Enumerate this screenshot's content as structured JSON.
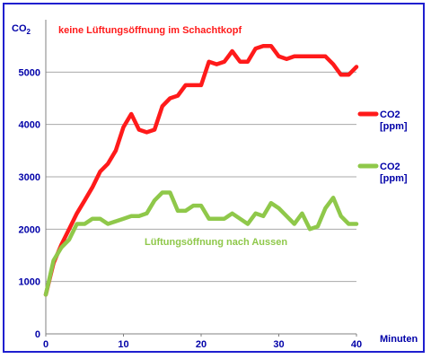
{
  "chart_data": {
    "type": "line",
    "ylabel": "CO",
    "ylabel_sub": "2",
    "xlabel": "Minuten",
    "xlim": [
      0,
      40
    ],
    "ylim": [
      0,
      6000
    ],
    "xticks": [
      0,
      10,
      20,
      30,
      40
    ],
    "yticks": [
      0,
      1000,
      2000,
      3000,
      4000,
      5000
    ],
    "grid": "horizontal",
    "legend_position": "right",
    "annotations": [
      {
        "text": "keine Lüftungsöffnung im Schachtkopf",
        "color": "#ff1a1a"
      },
      {
        "text": "Lüftungsöffnung nach Aussen",
        "color": "#8fc84a"
      }
    ],
    "series": [
      {
        "legend_line1": "CO2",
        "legend_line2": "[ppm]",
        "color": "#ff1a1a",
        "x": [
          0,
          1,
          2,
          3,
          4,
          5,
          6,
          7,
          8,
          9,
          10,
          11,
          12,
          13,
          14,
          15,
          16,
          17,
          18,
          19,
          20,
          21,
          22,
          23,
          24,
          25,
          26,
          27,
          28,
          29,
          30,
          31,
          32,
          33,
          34,
          35,
          36,
          37,
          38,
          39,
          40
        ],
        "values": [
          750,
          1350,
          1700,
          2000,
          2300,
          2550,
          2800,
          3100,
          3250,
          3500,
          3950,
          4200,
          3900,
          3850,
          3900,
          4350,
          4500,
          4550,
          4750,
          4750,
          4750,
          5200,
          5150,
          5200,
          5400,
          5200,
          5200,
          5450,
          5500,
          5500,
          5300,
          5250,
          5300,
          5300,
          5300,
          5300,
          5300,
          5150,
          4950,
          4950,
          5100
        ]
      },
      {
        "legend_line1": "CO2",
        "legend_line2": "[ppm]",
        "color": "#8fc84a",
        "x": [
          0,
          1,
          2,
          3,
          4,
          5,
          6,
          7,
          8,
          9,
          10,
          11,
          12,
          13,
          14,
          15,
          16,
          17,
          18,
          19,
          20,
          21,
          22,
          23,
          24,
          25,
          26,
          27,
          28,
          29,
          30,
          31,
          32,
          33,
          34,
          35,
          36,
          37,
          38,
          39,
          40
        ],
        "values": [
          750,
          1400,
          1650,
          1800,
          2100,
          2100,
          2200,
          2200,
          2100,
          2150,
          2200,
          2250,
          2250,
          2300,
          2550,
          2700,
          2700,
          2350,
          2350,
          2450,
          2450,
          2200,
          2200,
          2200,
          2300,
          2200,
          2100,
          2300,
          2250,
          2500,
          2400,
          2250,
          2100,
          2300,
          2000,
          2050,
          2400,
          2600,
          2250,
          2100,
          2100
        ]
      }
    ]
  }
}
